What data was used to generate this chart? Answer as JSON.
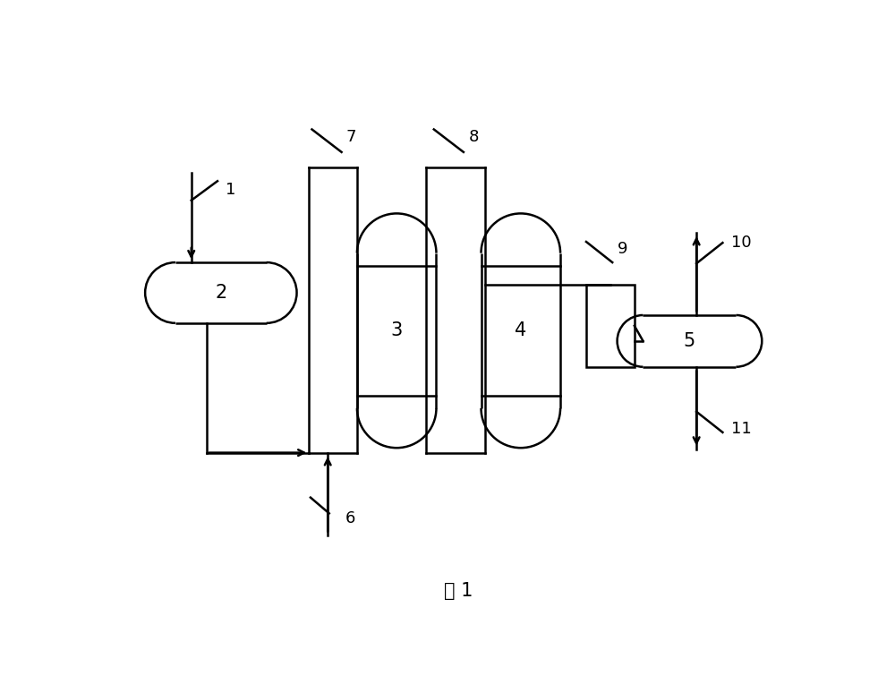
{
  "bg_color": "#ffffff",
  "line_color": "#000000",
  "text_color": "#000000",
  "fig_width": 10.0,
  "fig_height": 7.74,
  "caption": "图 1",
  "caption_fontsize": 15
}
